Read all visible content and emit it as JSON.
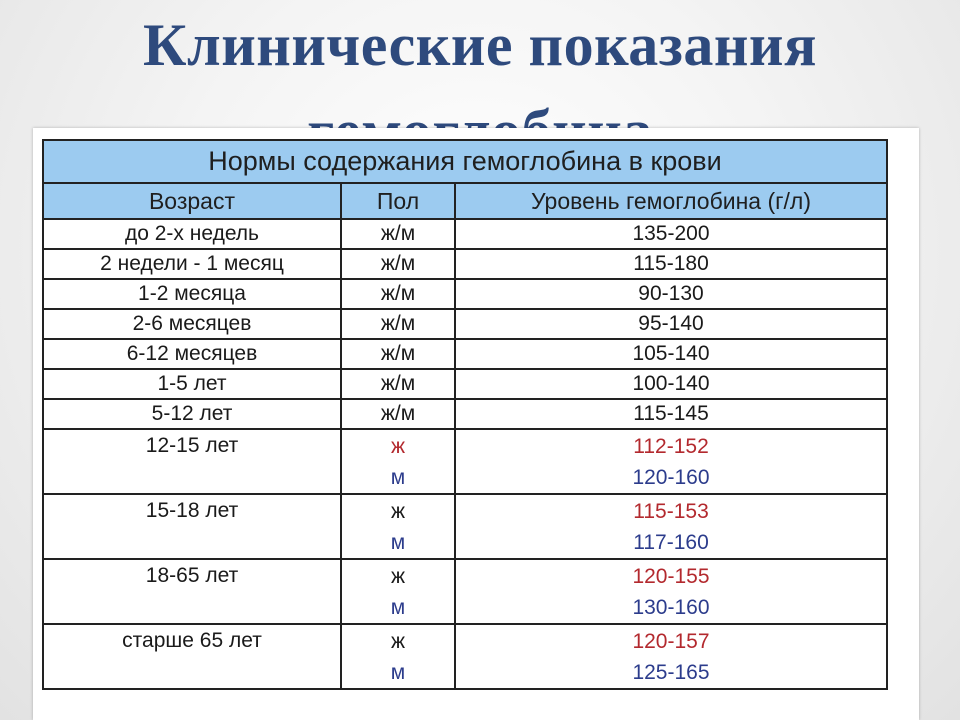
{
  "slide": {
    "title_line1": "Клинические показания",
    "title_line2": "гемоглобина"
  },
  "table": {
    "caption": "Нормы содержания гемоглобина в крови",
    "headers": [
      "Возраст",
      "Пол",
      "Уровень гемоглобина (г/л)"
    ],
    "rows": [
      {
        "age": "до 2-х недель",
        "sex": "ж/м",
        "level": "135-200"
      },
      {
        "age": "2 недели - 1 месяц",
        "sex": "ж/м",
        "level": "115-180"
      },
      {
        "age": "1-2 месяца",
        "sex": "ж/м",
        "level": "90-130"
      },
      {
        "age": "2-6 месяцев",
        "sex": "ж/м",
        "level": "95-140"
      },
      {
        "age": "6-12 месяцев",
        "sex": "ж/м",
        "level": "105-140"
      },
      {
        "age": "1-5 лет",
        "sex": "ж/м",
        "level": "100-140"
      },
      {
        "age": "5-12 лет",
        "sex": "ж/м",
        "level": "115-145"
      },
      {
        "age": "12-15 лет",
        "female_sex": "ж",
        "female_level": "112-152",
        "male_sex": "м",
        "male_level": "120-160"
      },
      {
        "age": "15-18 лет",
        "female_sex": "ж",
        "female_level": "115-153",
        "male_sex": "м",
        "male_level": "117-160"
      },
      {
        "age": "18-65 лет",
        "female_sex": "ж",
        "female_level": "120-155",
        "male_sex": "м",
        "male_level": "130-160"
      },
      {
        "age": "старше 65 лет",
        "female_sex": "ж",
        "female_level": "120-157",
        "male_sex": "м",
        "male_level": "125-165"
      }
    ],
    "colors": {
      "header_background": "#9ccbf0",
      "female_text": "#b3292e",
      "male_text": "#2c3c8c",
      "title_text": "#2e4a7d"
    }
  }
}
